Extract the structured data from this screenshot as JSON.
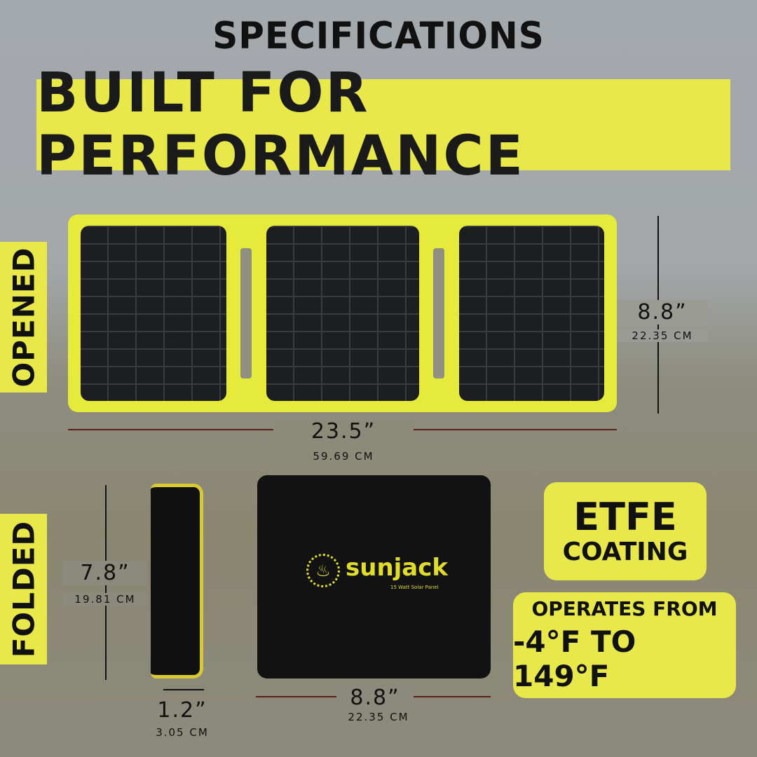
{
  "title": "SPECIFICATIONS",
  "banner": "BUILT FOR PERFORMANCE",
  "labels": {
    "opened": "OPENED",
    "folded": "FOLDED"
  },
  "opened": {
    "width_in": "23.5”",
    "width_cm": "59.69 CM",
    "height_in": "8.8”",
    "height_cm": "22.35 CM"
  },
  "folded": {
    "height_in": "7.8”",
    "height_cm": "19.81 CM",
    "depth_in": "1.2”",
    "depth_cm": "3.05 CM",
    "width_in": "8.8”",
    "width_cm": "22.35 CM"
  },
  "logo": {
    "brand": "sunjack",
    "subtitle": "15 Watt Solar Panel"
  },
  "features": {
    "etfe_line1": "ETFE",
    "etfe_line2": "COATING",
    "temp_line1": "OPERATES FROM",
    "temp_line2": "-4°F TO 149°F"
  },
  "colors": {
    "accent": "#e8e84a",
    "panel": "#1d1e1f"
  }
}
